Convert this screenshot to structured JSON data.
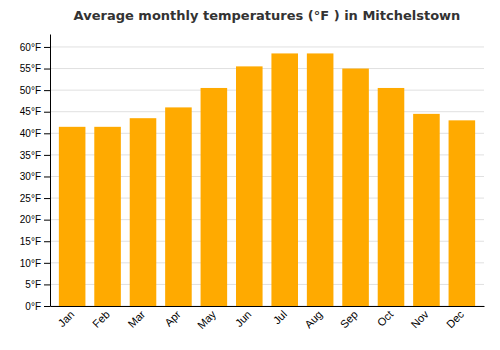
{
  "chart_data": {
    "type": "bar",
    "title": "Average monthly temperatures (°F ) in Mitchelstown",
    "categories": [
      "Jan",
      "Feb",
      "Mar",
      "Apr",
      "May",
      "Jun",
      "Jul",
      "Aug",
      "Sep",
      "Oct",
      "Nov",
      "Dec"
    ],
    "values": [
      41.5,
      41.5,
      43.5,
      46.0,
      50.5,
      55.5,
      58.5,
      58.5,
      55.0,
      50.5,
      44.5,
      43.0
    ],
    "color": "#FFAA00",
    "ylim": [
      0,
      63
    ],
    "yticks": [
      {
        "value": 0,
        "label": "0°F"
      },
      {
        "value": 5,
        "label": "5°F"
      },
      {
        "value": 10,
        "label": "10°F"
      },
      {
        "value": 15,
        "label": "15°F"
      },
      {
        "value": 20,
        "label": "20°F"
      },
      {
        "value": 25,
        "label": "25°F"
      },
      {
        "value": 30,
        "label": "30°F"
      },
      {
        "value": 35,
        "label": "35°F"
      },
      {
        "value": 40,
        "label": "40°F"
      },
      {
        "value": 45,
        "label": "45°F"
      },
      {
        "value": 50,
        "label": "50°F"
      },
      {
        "value": 55,
        "label": "55°F"
      },
      {
        "value": 60,
        "label": "60°F"
      }
    ],
    "grid": true
  }
}
